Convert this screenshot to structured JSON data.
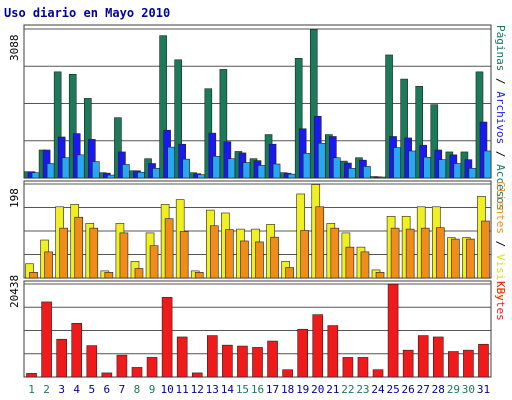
{
  "chart_data": [
    {
      "type": "bar",
      "title": "Uso diario en Mayo 2010",
      "ytick": "3088",
      "ylim": [
        0,
        3088
      ],
      "categories": [
        "1",
        "2",
        "3",
        "4",
        "5",
        "6",
        "7",
        "8",
        "9",
        "10",
        "11",
        "12",
        "13",
        "14",
        "15",
        "16",
        "17",
        "18",
        "19",
        "20",
        "21",
        "22",
        "23",
        "24",
        "25",
        "26",
        "27",
        "28",
        "29",
        "30",
        "31"
      ],
      "weekend_days": [
        "1",
        "2",
        "8",
        "9",
        "15",
        "16",
        "22",
        "23",
        "29",
        "30"
      ],
      "series": [
        {
          "name": "Páginas",
          "color": "#1a7a5a",
          "values": [
            130,
            580,
            2200,
            2150,
            1650,
            110,
            1250,
            150,
            400,
            2950,
            2450,
            110,
            1850,
            2250,
            550,
            400,
            900,
            110,
            2480,
            3080,
            900,
            350,
            420,
            30,
            2550,
            2050,
            1900,
            1520,
            540,
            540,
            2200
          ]
        },
        {
          "name": "Archivos",
          "color": "#1a1af0",
          "values": [
            130,
            580,
            850,
            920,
            800,
            100,
            540,
            150,
            300,
            990,
            700,
            90,
            930,
            750,
            520,
            360,
            700,
            100,
            1020,
            1280,
            860,
            310,
            370,
            25,
            860,
            830,
            680,
            580,
            480,
            380,
            1160
          ]
        },
        {
          "name": "Accesos",
          "color": "#28a8f0",
          "values": [
            110,
            300,
            420,
            480,
            340,
            60,
            280,
            120,
            200,
            640,
            390,
            70,
            450,
            400,
            320,
            260,
            290,
            80,
            510,
            720,
            420,
            200,
            240,
            20,
            630,
            560,
            430,
            380,
            300,
            200,
            560
          ]
        }
      ],
      "right_labels": [
        {
          "text": "Páginas",
          "color": "#1a7a5a"
        },
        {
          "text": " / ",
          "color": "#000000"
        },
        {
          "text": "Archivos",
          "color": "#1a1af0"
        },
        {
          "text": " / ",
          "color": "#000000"
        },
        {
          "text": "Accesos",
          "color": "#1a7a5a"
        }
      ]
    },
    {
      "type": "bar",
      "ytick": "198",
      "ylim": [
        0,
        198
      ],
      "categories": [
        "1",
        "2",
        "3",
        "4",
        "5",
        "6",
        "7",
        "8",
        "9",
        "10",
        "11",
        "12",
        "13",
        "14",
        "15",
        "16",
        "17",
        "18",
        "19",
        "20",
        "21",
        "22",
        "23",
        "24",
        "25",
        "26",
        "27",
        "28",
        "29",
        "30",
        "31"
      ],
      "series": [
        {
          "name": "Visitas",
          "color": "#f0f020",
          "values": [
            30,
            80,
            150,
            155,
            115,
            15,
            115,
            35,
            95,
            155,
            165,
            15,
            143,
            137,
            103,
            103,
            113,
            35,
            177,
            197,
            115,
            95,
            65,
            17,
            130,
            130,
            150,
            150,
            85,
            85,
            172
          ]
        },
        {
          "name": "Clientes",
          "color": "#f08c1a",
          "values": [
            12,
            55,
            105,
            128,
            105,
            12,
            95,
            20,
            68,
            125,
            98,
            12,
            110,
            102,
            78,
            76,
            86,
            22,
            100,
            150,
            105,
            65,
            55,
            12,
            105,
            103,
            105,
            106,
            82,
            82,
            120
          ]
        }
      ],
      "right_labels": [
        {
          "text": "Clientes",
          "color": "#f08c1a"
        },
        {
          "text": " / ",
          "color": "#000000"
        },
        {
          "text": "Visitas",
          "color": "#e0e020"
        }
      ]
    },
    {
      "type": "bar",
      "ytick": "20438",
      "ylim": [
        0,
        20438
      ],
      "categories": [
        "1",
        "2",
        "3",
        "4",
        "5",
        "6",
        "7",
        "8",
        "9",
        "10",
        "11",
        "12",
        "13",
        "14",
        "15",
        "16",
        "17",
        "18",
        "19",
        "20",
        "21",
        "22",
        "23",
        "24",
        "25",
        "26",
        "27",
        "28",
        "29",
        "30",
        "31"
      ],
      "series": [
        {
          "name": "KBytes",
          "color": "#f01a1a",
          "values": [
            800,
            16500,
            8300,
            11800,
            6900,
            900,
            4800,
            2100,
            4300,
            17500,
            8800,
            900,
            9100,
            7000,
            6800,
            6500,
            7900,
            1600,
            10500,
            13700,
            11300,
            4300,
            4300,
            1600,
            20400,
            5900,
            9100,
            8800,
            5600,
            5900,
            7200
          ]
        }
      ],
      "right_labels": [
        {
          "text": "KBytes",
          "color": "#f01a1a"
        }
      ]
    }
  ]
}
